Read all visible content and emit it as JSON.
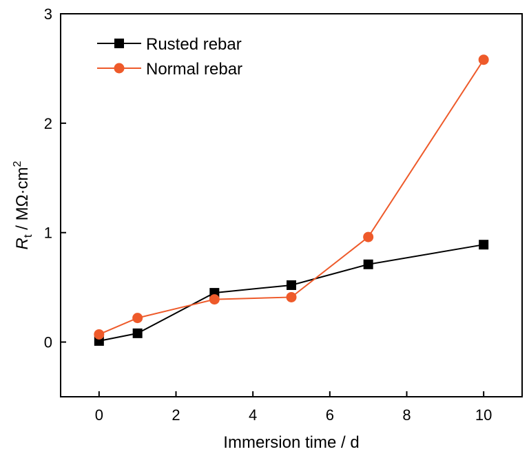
{
  "chart_data": {
    "type": "line",
    "xlabel": "Immersion time / d",
    "ylabel": {
      "symbol": "R",
      "subscript": "t",
      "unit": " / MΩ·cm",
      "superscript": "2"
    },
    "xlim": [
      -1,
      11
    ],
    "ylim": [
      -0.5,
      3
    ],
    "xticks": [
      0,
      2,
      4,
      6,
      8,
      10
    ],
    "yticks": [
      0,
      1,
      2,
      3
    ],
    "grid": false,
    "legend_position": "top-left",
    "series": [
      {
        "name": "Rusted rebar",
        "color": "#000000",
        "marker": "square",
        "x": [
          0,
          1,
          3,
          5,
          7,
          10
        ],
        "y": [
          0.01,
          0.08,
          0.45,
          0.52,
          0.71,
          0.89
        ]
      },
      {
        "name": "Normal rebar",
        "color": "#ee5a2a",
        "marker": "circle",
        "x": [
          0,
          1,
          3,
          5,
          7,
          10
        ],
        "y": [
          0.07,
          0.22,
          0.39,
          0.41,
          0.96,
          2.58
        ]
      }
    ]
  }
}
